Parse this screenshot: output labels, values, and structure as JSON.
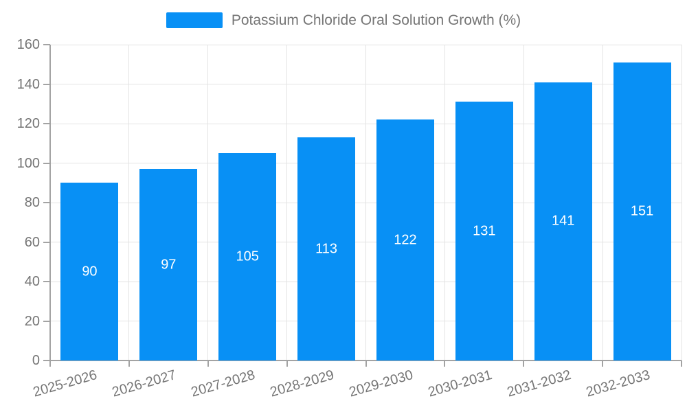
{
  "chart_data": {
    "type": "bar",
    "title": "Potassium Chloride Oral Solution Growth (%)",
    "legend": {
      "label": "Potassium Chloride Oral Solution Growth (%)",
      "position": "top-center"
    },
    "categories": [
      "2025-2026",
      "2026-2027",
      "2027-2028",
      "2028-2029",
      "2029-2030",
      "2030-2031",
      "2031-2032",
      "2032-2033"
    ],
    "series": [
      {
        "name": "Potassium Chloride Oral Solution Growth (%)",
        "values": [
          90,
          97,
          105,
          113,
          122,
          131,
          141,
          151
        ]
      }
    ],
    "value_labels_visible": true,
    "xlabel": "",
    "ylabel": "",
    "ylim": [
      0,
      160
    ],
    "ytick_step": 20,
    "yticks": [
      0,
      20,
      40,
      60,
      80,
      100,
      120,
      140,
      160
    ],
    "grid": "horizontal-and-vertical",
    "x_label_rotation_deg": -16,
    "colors": {
      "bar": "#0890f5",
      "bar_value_text": "#ffffff",
      "axis_line": "#a3a3a3",
      "gridline": "#e3e3e3",
      "tick_text": "#757575",
      "legend_text": "#757575",
      "background": "#ffffff"
    }
  }
}
